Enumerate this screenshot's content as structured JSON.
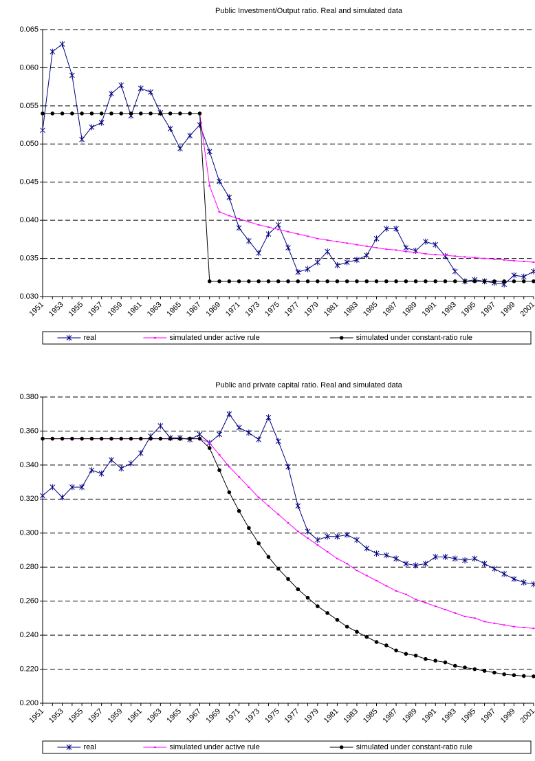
{
  "chart_data": [
    {
      "type": "line",
      "title": "Public Investment/Output ratio. Real and simulated data",
      "categories": [
        "1951",
        null,
        "1953",
        null,
        "1955",
        null,
        "1957",
        null,
        "1959",
        null,
        "1961",
        null,
        "1963",
        null,
        "1965",
        null,
        "1967",
        null,
        "1969",
        null,
        "1971",
        null,
        "1973",
        null,
        "1975",
        null,
        "1977",
        null,
        "1979",
        null,
        "1981",
        null,
        "1983",
        null,
        "1985",
        null,
        "1987",
        null,
        "1989",
        null,
        "1991",
        null,
        "1993",
        null,
        "1995",
        null,
        "1997",
        null,
        "1999",
        null,
        "2001"
      ],
      "ylim": [
        0.03,
        0.065
      ],
      "yticks": [
        {
          "value": 0.03,
          "label": "0.030"
        },
        0.035,
        {
          "value": 0.04,
          "label": "0.040"
        },
        0.045,
        {
          "value": 0.05,
          "label": "0.050"
        },
        0.055,
        {
          "value": 0.06,
          "label": "0.060"
        },
        0.065
      ],
      "grid": true,
      "legend": "bottom",
      "series": [
        {
          "name": "real",
          "color": "#000080",
          "marker": "star",
          "values": [
            0.0518,
            0.0621,
            0.0631,
            0.059,
            0.0506,
            0.0522,
            0.0528,
            0.0566,
            0.0577,
            0.0537,
            0.0573,
            0.0568,
            0.0541,
            0.052,
            0.0494,
            0.0511,
            0.0525,
            0.049,
            0.0451,
            0.043,
            0.039,
            0.0373,
            0.0357,
            0.0382,
            0.0394,
            0.0364,
            0.0332,
            0.0336,
            0.0345,
            0.0359,
            0.0341,
            0.0345,
            0.0348,
            0.0354,
            0.0376,
            0.0389,
            0.0389,
            0.0364,
            0.036,
            0.0372,
            0.0368,
            0.0353,
            0.0333,
            0.032,
            0.0322,
            0.032,
            0.0318,
            0.0316,
            0.0328,
            0.0326,
            0.0333
          ]
        },
        {
          "name": "simulated under active rule",
          "color": "#ff00ff",
          "marker": "dash",
          "values": [
            0.054,
            0.054,
            0.054,
            0.054,
            0.054,
            0.054,
            0.054,
            0.054,
            0.054,
            0.054,
            0.054,
            0.054,
            0.054,
            0.054,
            0.054,
            0.054,
            0.054,
            0.0445,
            0.0411,
            0.0406,
            0.0402,
            0.0398,
            0.0394,
            0.0391,
            0.0388,
            0.0385,
            0.0382,
            0.0379,
            0.0376,
            0.0374,
            0.0372,
            0.037,
            0.0368,
            0.0366,
            0.0364,
            0.0362,
            0.0361,
            0.0359,
            0.0358,
            0.0356,
            0.0355,
            0.0354,
            0.0353,
            0.0352,
            0.0351,
            0.035,
            0.0349,
            0.0348,
            0.0347,
            0.0346,
            0.0345
          ]
        },
        {
          "name": "simulated under constant-ratio rule",
          "color": "#000000",
          "marker": "dot",
          "values": [
            0.054,
            0.054,
            0.054,
            0.054,
            0.054,
            0.054,
            0.054,
            0.054,
            0.054,
            0.054,
            0.054,
            0.054,
            0.054,
            0.054,
            0.054,
            0.054,
            0.054,
            0.032,
            0.032,
            0.032,
            0.032,
            0.032,
            0.032,
            0.032,
            0.032,
            0.032,
            0.032,
            0.032,
            0.032,
            0.032,
            0.032,
            0.032,
            0.032,
            0.032,
            0.032,
            0.032,
            0.032,
            0.032,
            0.032,
            0.032,
            0.032,
            0.032,
            0.032,
            0.032,
            0.032,
            0.032,
            0.032,
            0.032,
            0.032,
            0.032,
            0.032
          ]
        }
      ]
    },
    {
      "type": "line",
      "title": "Public and private capital ratio. Real and simulated data",
      "categories": [
        "1951",
        null,
        "1953",
        null,
        "1955",
        null,
        "1957",
        null,
        "1959",
        null,
        "1961",
        null,
        "1963",
        null,
        "1965",
        null,
        "1967",
        null,
        "1969",
        null,
        "1971",
        null,
        "1973",
        null,
        "1975",
        null,
        "1977",
        null,
        "1979",
        null,
        "1981",
        null,
        "1983",
        null,
        "1985",
        null,
        "1987",
        null,
        "1989",
        null,
        "1991",
        null,
        "1993",
        null,
        "1995",
        null,
        "1997",
        null,
        "1999",
        null,
        "2001"
      ],
      "ylim": [
        0.2,
        0.38
      ],
      "yticks": [
        {
          "value": 0.2,
          "label": "0.200"
        },
        {
          "value": 0.22,
          "label": "0.220"
        },
        {
          "value": 0.24,
          "label": "0.240"
        },
        {
          "value": 0.26,
          "label": "0.260"
        },
        {
          "value": 0.28,
          "label": "0.280"
        },
        {
          "value": 0.3,
          "label": "0.300"
        },
        {
          "value": 0.32,
          "label": "0.320"
        },
        {
          "value": 0.34,
          "label": "0.340"
        },
        {
          "value": 0.36,
          "label": "0.360"
        },
        {
          "value": 0.38,
          "label": "0.380"
        }
      ],
      "grid": true,
      "legend": "bottom",
      "series": [
        {
          "name": "real",
          "color": "#000080",
          "marker": "star",
          "values": [
            0.322,
            0.327,
            0.321,
            0.327,
            0.327,
            0.337,
            0.335,
            0.343,
            0.338,
            0.341,
            0.347,
            0.357,
            0.363,
            0.356,
            0.356,
            0.355,
            0.358,
            0.353,
            0.358,
            0.37,
            0.362,
            0.359,
            0.355,
            0.368,
            0.354,
            0.339,
            0.316,
            0.301,
            0.296,
            0.298,
            0.298,
            0.299,
            0.296,
            0.291,
            0.288,
            0.287,
            0.285,
            0.282,
            0.281,
            0.282,
            0.286,
            0.286,
            0.285,
            0.284,
            0.285,
            0.282,
            0.279,
            0.276,
            0.273,
            0.271,
            0.27
          ]
        },
        {
          "name": "simulated under active rule",
          "color": "#ff00ff",
          "marker": "dash",
          "values": [
            0.3555,
            0.3555,
            0.3555,
            0.3555,
            0.3555,
            0.3555,
            0.3555,
            0.3555,
            0.3555,
            0.3555,
            0.3555,
            0.3555,
            0.3555,
            0.3555,
            0.3555,
            0.3555,
            0.3555,
            0.353,
            0.346,
            0.339,
            0.333,
            0.327,
            0.321,
            0.316,
            0.311,
            0.306,
            0.301,
            0.297,
            0.293,
            0.289,
            0.285,
            0.282,
            0.278,
            0.275,
            0.272,
            0.269,
            0.266,
            0.264,
            0.261,
            0.259,
            0.257,
            0.255,
            0.253,
            0.251,
            0.25,
            0.248,
            0.247,
            0.246,
            0.245,
            0.2445,
            0.244
          ]
        },
        {
          "name": "simulated under constant-ratio rule",
          "color": "#000000",
          "marker": "dot",
          "values": [
            0.3555,
            0.3555,
            0.3555,
            0.3555,
            0.3555,
            0.3555,
            0.3555,
            0.3555,
            0.3555,
            0.3555,
            0.3555,
            0.3555,
            0.3555,
            0.3555,
            0.3555,
            0.3555,
            0.3555,
            0.35,
            0.337,
            0.324,
            0.313,
            0.303,
            0.294,
            0.286,
            0.279,
            0.273,
            0.267,
            0.262,
            0.257,
            0.253,
            0.249,
            0.245,
            0.242,
            0.239,
            0.236,
            0.234,
            0.231,
            0.229,
            0.228,
            0.226,
            0.225,
            0.224,
            0.222,
            0.221,
            0.22,
            0.219,
            0.218,
            0.217,
            0.2165,
            0.216,
            0.2158
          ]
        }
      ]
    }
  ]
}
